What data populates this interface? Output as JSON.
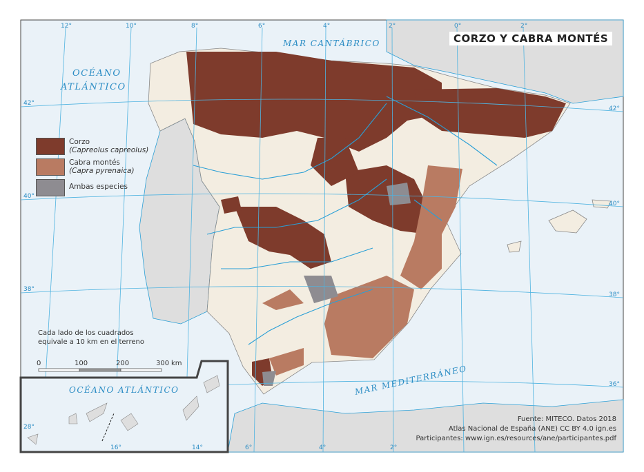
{
  "title": "CORZO Y CABRA MONTÉS",
  "sea_labels": {
    "cantabrico": "MAR CANTÁBRICO",
    "atlantico_line1": "OCÉANO",
    "atlantico_line2": "ATLÁNTICO",
    "mediterraneo": "MAR MEDITERRÁNEO",
    "inset_atlantico": "OCÉANO ATLÁNTICO"
  },
  "legend": [
    {
      "label": "Corzo",
      "scientific": "(Capreolus capreolus)",
      "color": "#7e3b2c"
    },
    {
      "label": "Cabra montés",
      "scientific": "(Capra pyrenaica)",
      "color": "#b97b62"
    },
    {
      "label": "Ambas especies",
      "scientific": "",
      "color": "#8e8c91"
    }
  ],
  "note": {
    "line1": "Cada lado de los cuadrados",
    "line2": "equivale a 10 km en el terreno"
  },
  "scale_bar": {
    "ticks": [
      "0",
      "100",
      "200",
      "300"
    ],
    "unit": "km"
  },
  "graticule": {
    "top": [
      "12°",
      "10°",
      "8°",
      "6°",
      "4°",
      "2°",
      "0°",
      "2°"
    ],
    "left": [
      "42°",
      "40°",
      "38°"
    ],
    "right": [
      "42°",
      "40°",
      "38°",
      "36°"
    ],
    "bottom": [
      "6°",
      "4°",
      "2°"
    ],
    "inset": [
      "28°",
      "16°",
      "14°"
    ]
  },
  "credits": {
    "source": "Fuente: MITECO. Datos 2018",
    "atlas": "Atlas Nacional de España (ANE) CC BY 4.0 ign.es",
    "participants": "Participantes: www.ign.es/resources/ane/participantes.pdf"
  },
  "colors": {
    "sea": "#eaf2f8",
    "spain_land": "#f3ede1",
    "other_land": "#dedede",
    "rivers": "#2a9fd6",
    "graticule": "#4fb3e0"
  }
}
